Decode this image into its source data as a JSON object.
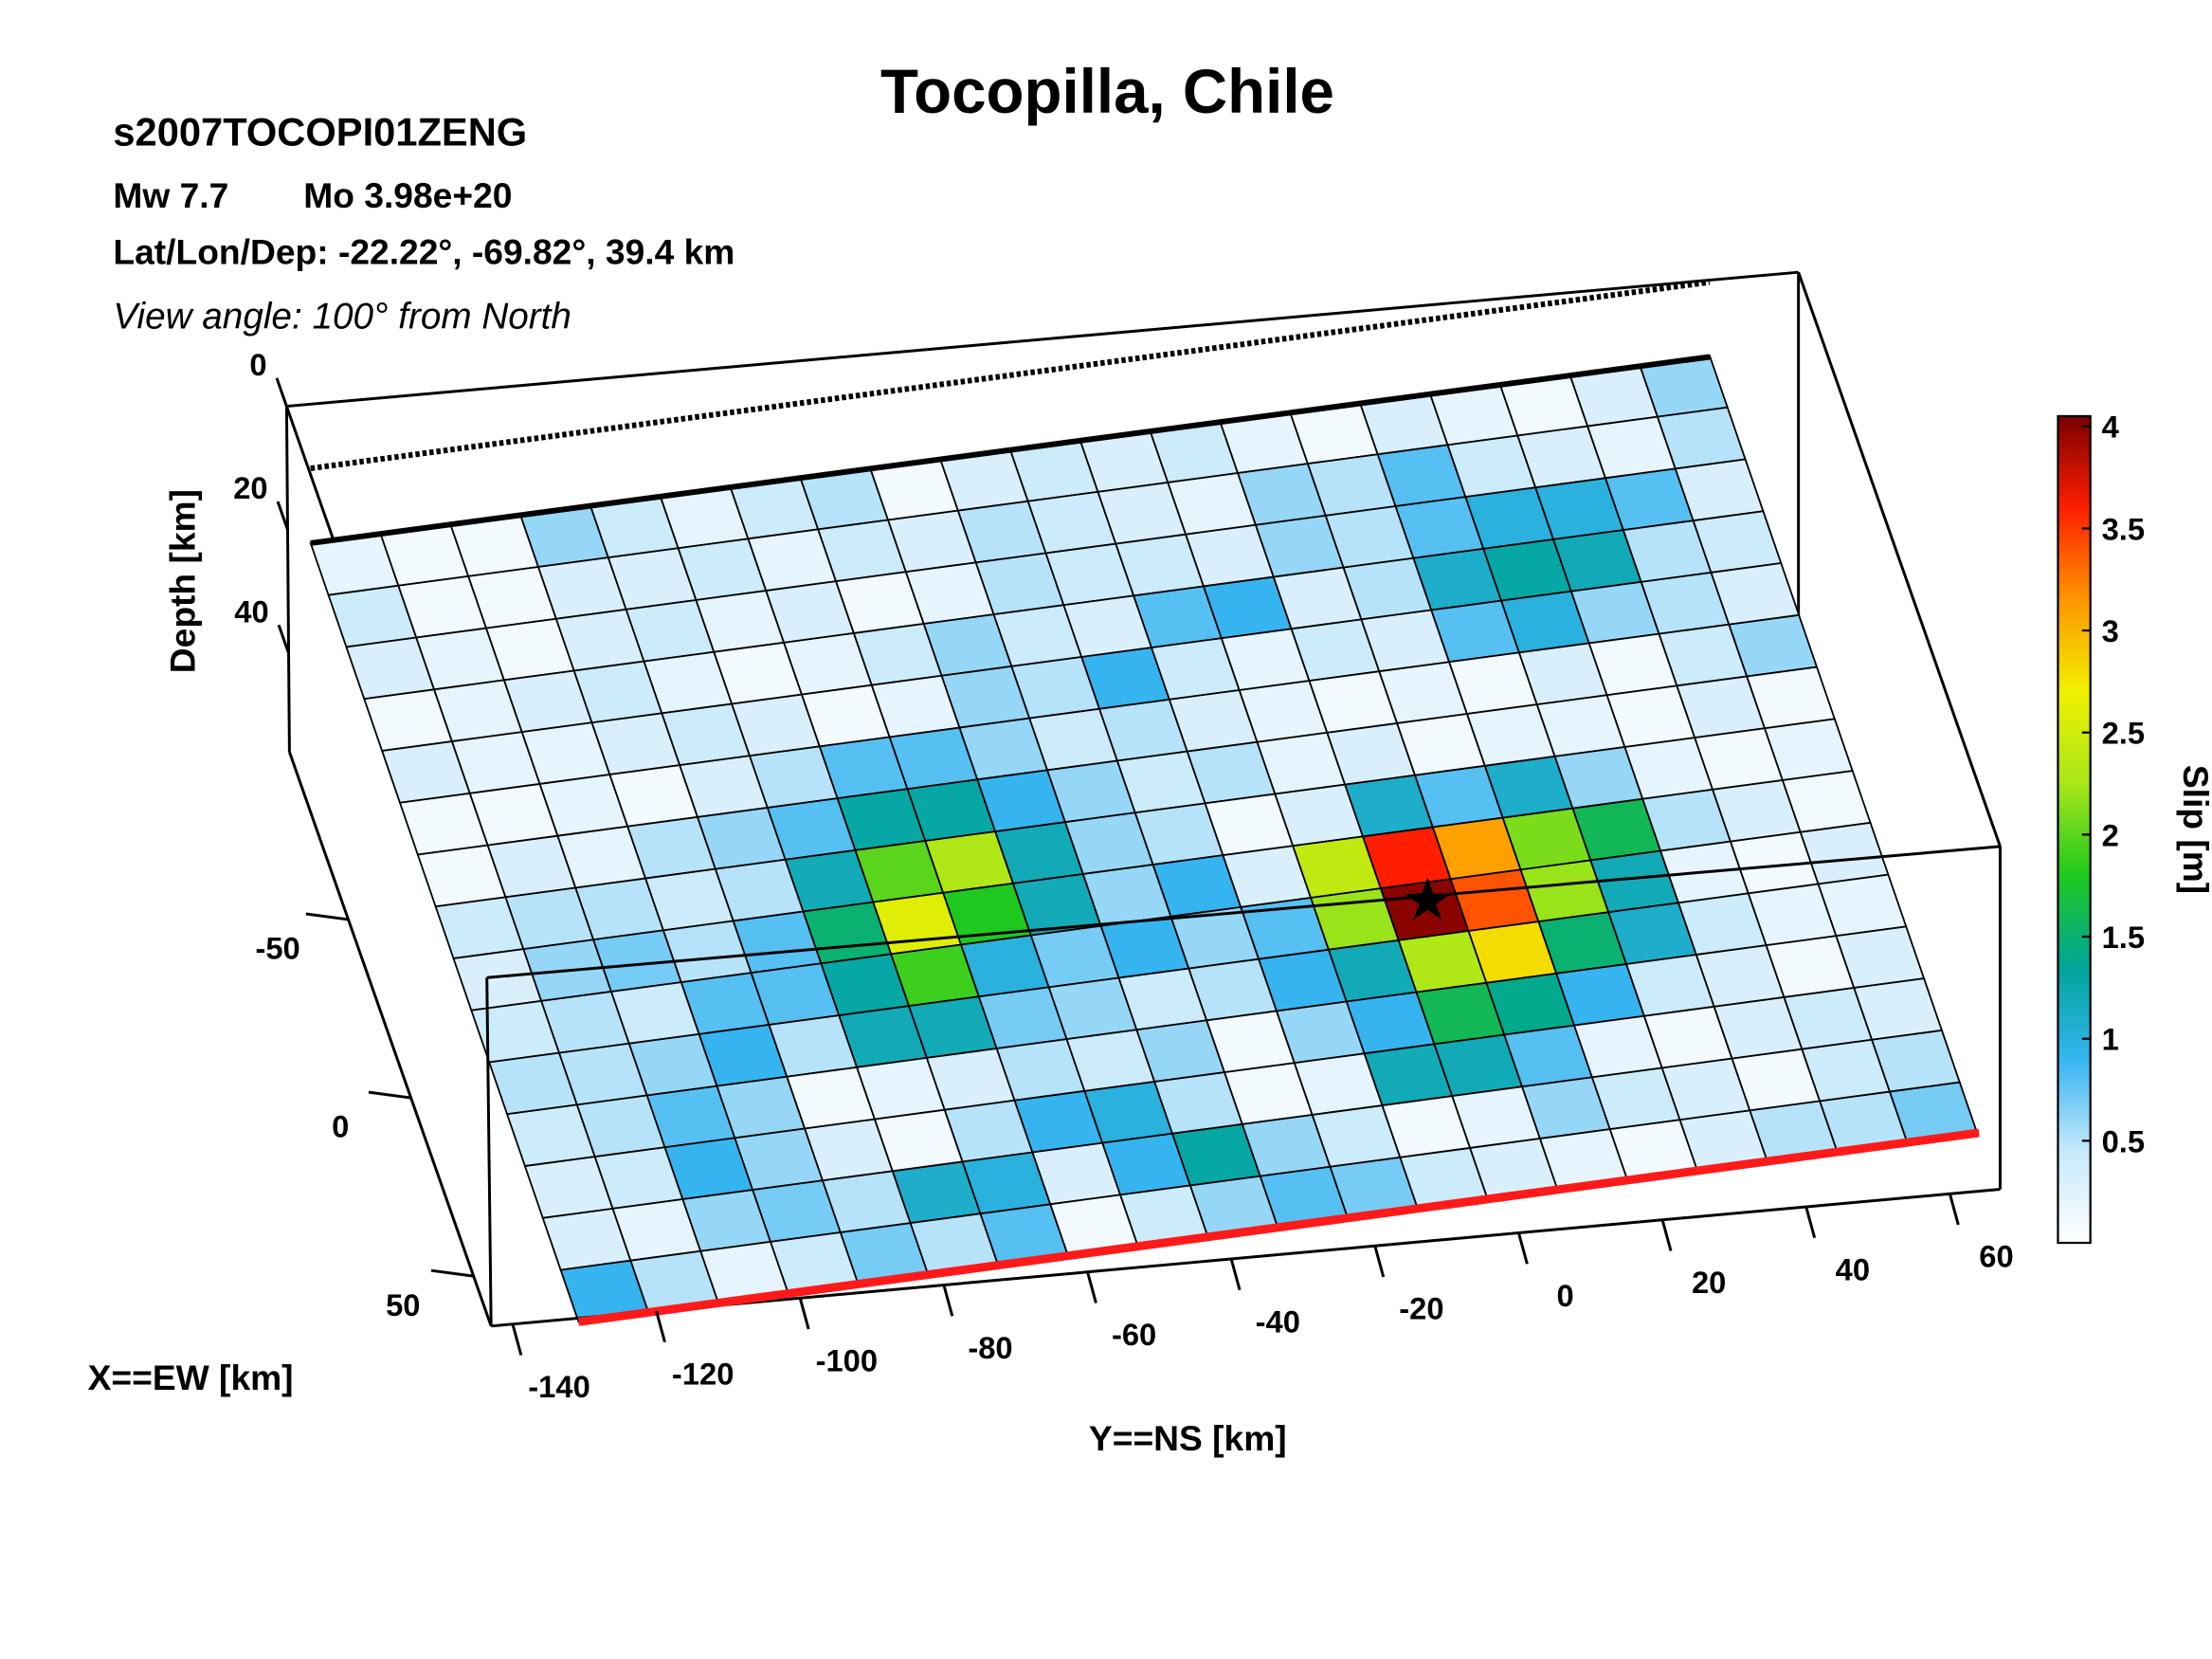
{
  "chart_data": {
    "type": "heatmap",
    "title": "Tocopilla, Chile",
    "event_id": "s2007TOCOPI01ZENG",
    "magnitude": "Mw 7.7",
    "moment": "Mo 3.98e+20",
    "location": "Lat/Lon/Dep: -22.22°, -69.82°, 39.4 km",
    "view_angle": "View angle: 100° from North",
    "zlabel": "Depth [km]",
    "xlabel": "X==EW [km]",
    "ylabel": "Y==NS [km]",
    "colorbar_label": "Slip [m]",
    "zlim": [
      0,
      56
    ],
    "zticks": [
      0,
      20,
      40
    ],
    "xlim": [
      -97,
      64
    ],
    "xticks": [
      -50,
      0,
      50
    ],
    "ylim": [
      -143,
      67
    ],
    "yticks": [
      -140,
      -120,
      -100,
      -80,
      -60,
      -40,
      -20,
      0,
      20,
      40,
      60
    ],
    "clim": [
      0,
      4.05
    ],
    "cticks": [
      0.5,
      1,
      1.5,
      2,
      2.5,
      3,
      3.5,
      4
    ],
    "colormap": [
      "#ffffff",
      "#c6e9fb",
      "#36b4f0",
      "#00a59a",
      "#1ec81e",
      "#a8e61a",
      "#f0f000",
      "#ff9600",
      "#ff1e00",
      "#7a0000"
    ],
    "slip": [
      [
        0.2,
        0.1,
        0.1,
        0.6,
        0.4,
        0.2,
        0.4,
        0.5,
        0.1,
        0.3,
        0.4,
        0.3,
        0.4,
        0.2,
        0.1,
        0.3,
        0.2,
        0.1,
        0.3,
        0.6
      ],
      [
        0.4,
        0.1,
        0.1,
        0.3,
        0.3,
        0.4,
        0.2,
        0.4,
        0.3,
        0.5,
        0.4,
        0.3,
        0.2,
        0.6,
        0.5,
        0.8,
        0.4,
        0.3,
        0.2,
        0.5
      ],
      [
        0.3,
        0.2,
        0.1,
        0.3,
        0.4,
        0.2,
        0.3,
        0.1,
        0.2,
        0.5,
        0.4,
        0.4,
        0.3,
        0.6,
        0.5,
        0.8,
        1.0,
        1.0,
        0.8,
        0.3
      ],
      [
        0.1,
        0.2,
        0.3,
        0.4,
        0.2,
        0.1,
        0.2,
        0.4,
        0.6,
        0.4,
        0.3,
        0.8,
        0.9,
        0.3,
        0.5,
        1.1,
        1.3,
        1.2,
        0.5,
        0.4
      ],
      [
        0.3,
        0.2,
        0.2,
        0.3,
        0.4,
        0.3,
        0.1,
        0.2,
        0.6,
        0.5,
        0.9,
        0.4,
        0.2,
        0.4,
        0.3,
        0.8,
        1.0,
        0.6,
        0.5,
        0.3
      ],
      [
        0.1,
        0.1,
        0.2,
        0.1,
        0.3,
        0.5,
        0.8,
        0.8,
        0.6,
        0.4,
        0.5,
        0.3,
        0.2,
        0.1,
        0.2,
        0.1,
        0.3,
        0.1,
        0.4,
        0.6
      ],
      [
        0.1,
        0.3,
        0.2,
        0.5,
        0.6,
        0.8,
        1.3,
        1.3,
        0.9,
        0.6,
        0.4,
        0.5,
        0.2,
        0.3,
        0.1,
        0.2,
        0.2,
        0.1,
        0.3,
        0.1
      ],
      [
        0.4,
        0.5,
        0.5,
        0.4,
        0.5,
        1.2,
        2.0,
        2.3,
        1.2,
        0.6,
        0.5,
        0.1,
        0.3,
        1.1,
        0.8,
        1.1,
        0.6,
        0.2,
        0.1,
        0.2
      ],
      [
        0.3,
        0.6,
        0.7,
        0.5,
        0.8,
        1.5,
        2.6,
        1.8,
        1.2,
        0.6,
        0.9,
        0.3,
        2.4,
        3.6,
        3.1,
        2.1,
        1.6,
        0.5,
        0.3,
        0.1
      ],
      [
        0.4,
        0.5,
        0.4,
        0.8,
        0.8,
        1.3,
        1.9,
        1.0,
        0.7,
        0.9,
        0.6,
        0.8,
        2.2,
        4.0,
        3.4,
        2.2,
        1.2,
        0.2,
        0.1,
        0.3
      ],
      [
        0.5,
        0.5,
        0.6,
        0.9,
        0.5,
        1.2,
        1.2,
        0.7,
        0.6,
        0.4,
        0.5,
        0.9,
        1.2,
        2.3,
        2.8,
        1.5,
        1.1,
        0.4,
        0.2,
        0.2
      ],
      [
        0.4,
        0.5,
        0.8,
        0.6,
        0.1,
        0.2,
        0.3,
        0.5,
        0.4,
        0.6,
        0.1,
        0.6,
        0.9,
        1.6,
        1.4,
        0.9,
        0.4,
        0.3,
        0.1,
        0.3
      ],
      [
        0.3,
        0.4,
        0.9,
        0.6,
        0.3,
        0.1,
        0.5,
        0.9,
        1.0,
        0.5,
        0.1,
        0.2,
        1.2,
        1.2,
        0.8,
        0.2,
        0.1,
        0.3,
        0.4,
        0.3
      ],
      [
        0.3,
        0.2,
        0.6,
        0.7,
        0.5,
        1.1,
        1.0,
        0.3,
        0.9,
        1.3,
        0.6,
        0.4,
        0.1,
        0.2,
        0.6,
        0.4,
        0.3,
        0.1,
        0.4,
        0.5
      ],
      [
        0.9,
        0.5,
        0.2,
        0.4,
        0.7,
        0.5,
        0.8,
        0.1,
        0.4,
        0.6,
        0.8,
        0.7,
        0.4,
        0.3,
        0.2,
        0.1,
        0.3,
        0.5,
        0.5,
        0.7
      ]
    ]
  }
}
